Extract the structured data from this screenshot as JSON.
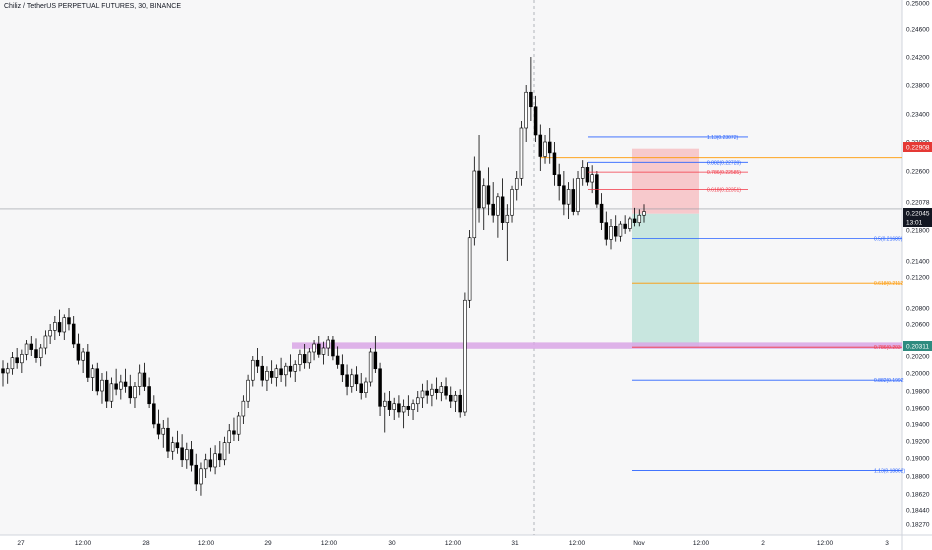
{
  "header": {
    "title": "Chiliz / TetherUS PERPETUAL FUTURES, 30, BINANCE"
  },
  "colors": {
    "background": "#f7f7f8",
    "axis_background": "#ffffff",
    "up_candle": "#ffffff",
    "down_candle": "#000000",
    "candle_outline": "#000000",
    "fib_blue": "#2962ff",
    "fib_orange": "#ff9800",
    "fib_red": "#f23645",
    "stop_zone": "#f7c9cc",
    "target_zone": "#c8e6df",
    "support_band": "#d9a6e6",
    "price_badge_red": "#e53935",
    "price_badge_black": "#131722",
    "price_badge_teal": "#2e8b7f"
  },
  "chart_data": {
    "type": "candlestick",
    "title": "Chiliz / TetherUS PERPETUAL FUTURES, 30, BINANCE",
    "x_tick_labels": [
      "27",
      "12:00",
      "28",
      "12:00",
      "29",
      "12:00",
      "30",
      "12:00",
      "31",
      "12:00",
      "Nov",
      "12:00",
      "2",
      "12:00",
      "3"
    ],
    "y_tick_labels": [
      "0.25000",
      "0.24600",
      "0.24200",
      "0.23800",
      "0.23400",
      "0.23000",
      "0.22600",
      "0.21800",
      "0.21400",
      "0.21200",
      "0.20800",
      "0.20600",
      "0.20200",
      "0.20000",
      "0.19800",
      "0.19600",
      "0.19400",
      "0.19200",
      "0.19000",
      "0.18800",
      "0.18620",
      "0.18440",
      "0.18270"
    ],
    "ylim": [
      0.1827,
      0.25
    ],
    "grid": false,
    "price_badges": [
      {
        "label": "0.22908",
        "value": 0.22908,
        "style": "red"
      },
      {
        "label": "0.22078",
        "value": 0.22078,
        "style": "gray"
      },
      {
        "label": "0.22045",
        "value": 0.22045,
        "style": "black"
      },
      {
        "label": "13:01",
        "value": 0.21963,
        "style": "black"
      },
      {
        "label": "0.20311",
        "value": 0.20311,
        "style": "teal"
      }
    ],
    "fib_levels": [
      {
        "label": "1.13(0.23072)",
        "value": 0.23072,
        "color": "blue"
      },
      {
        "label": "0.882(0.22720)",
        "value": 0.2272,
        "color": "blue"
      },
      {
        "label": "0.786(0.22585)",
        "value": 0.22585,
        "color": "red"
      },
      {
        "label": "0.618(0.22351)",
        "value": 0.22351,
        "color": "red"
      },
      {
        "label": "0.5(0.21689)",
        "value": 0.21689,
        "color": "blue"
      },
      {
        "label": "0.618(0.2112",
        "value": 0.2112,
        "color": "orange"
      },
      {
        "label": "0.786(0.203",
        "value": 0.2031,
        "color": "red"
      },
      {
        "label": "0.882(0.1992",
        "value": 0.1992,
        "color": "blue"
      },
      {
        "label": "1.13(0.18862)",
        "value": 0.18862,
        "color": "blue"
      }
    ],
    "entry_price": 0.2202,
    "stop_price": 0.22908,
    "target_price": 0.20311,
    "support_band": [
      0.2029,
      0.2037
    ],
    "current_price": 0.22045,
    "candles_ohlc": [
      [
        0.2005,
        0.2015,
        0.1985,
        0.2
      ],
      [
        0.2,
        0.2012,
        0.1988,
        0.2005
      ],
      [
        0.2005,
        0.2025,
        0.1998,
        0.2018
      ],
      [
        0.2018,
        0.203,
        0.2005,
        0.2012
      ],
      [
        0.2012,
        0.2028,
        0.2,
        0.2022
      ],
      [
        0.2022,
        0.204,
        0.2015,
        0.2035
      ],
      [
        0.2035,
        0.2045,
        0.202,
        0.2028
      ],
      [
        0.2028,
        0.2042,
        0.2012,
        0.2018
      ],
      [
        0.2018,
        0.2035,
        0.2008,
        0.203
      ],
      [
        0.203,
        0.2052,
        0.2022,
        0.2045
      ],
      [
        0.2045,
        0.206,
        0.2035,
        0.2052
      ],
      [
        0.2052,
        0.207,
        0.204,
        0.2062
      ],
      [
        0.2062,
        0.2078,
        0.2045,
        0.205
      ],
      [
        0.205,
        0.2072,
        0.204,
        0.2068
      ],
      [
        0.2068,
        0.208,
        0.2052,
        0.206
      ],
      [
        0.206,
        0.207,
        0.203,
        0.2035
      ],
      [
        0.2035,
        0.2048,
        0.201,
        0.2015
      ],
      [
        0.2015,
        0.203,
        0.2,
        0.2025
      ],
      [
        0.2025,
        0.2035,
        0.199,
        0.1995
      ],
      [
        0.1995,
        0.201,
        0.198,
        0.2005
      ],
      [
        0.2005,
        0.2012,
        0.1975,
        0.198
      ],
      [
        0.198,
        0.2,
        0.1965,
        0.1992
      ],
      [
        0.1992,
        0.2002,
        0.196,
        0.1968
      ],
      [
        0.1968,
        0.1995,
        0.196,
        0.1988
      ],
      [
        0.1988,
        0.2005,
        0.1975,
        0.1982
      ],
      [
        0.1982,
        0.1998,
        0.197,
        0.199
      ],
      [
        0.199,
        0.2005,
        0.1978,
        0.1985
      ],
      [
        0.1985,
        0.1998,
        0.1965,
        0.1972
      ],
      [
        0.1972,
        0.199,
        0.196,
        0.1985
      ],
      [
        0.1985,
        0.201,
        0.1975,
        0.2
      ],
      [
        0.2,
        0.2012,
        0.198,
        0.1985
      ],
      [
        0.1985,
        0.1995,
        0.196,
        0.1965
      ],
      [
        0.1965,
        0.1975,
        0.1935,
        0.194
      ],
      [
        0.194,
        0.1958,
        0.1922,
        0.1928
      ],
      [
        0.1928,
        0.1945,
        0.1912,
        0.1935
      ],
      [
        0.1935,
        0.1948,
        0.19,
        0.1908
      ],
      [
        0.1908,
        0.1925,
        0.1898,
        0.1918
      ],
      [
        0.1918,
        0.1932,
        0.1905,
        0.1912
      ],
      [
        0.1912,
        0.1928,
        0.189,
        0.1898
      ],
      [
        0.1898,
        0.1918,
        0.1888,
        0.191
      ],
      [
        0.191,
        0.192,
        0.1885,
        0.1892
      ],
      [
        0.1892,
        0.1905,
        0.1865,
        0.1872
      ],
      [
        0.1872,
        0.1895,
        0.186,
        0.1888
      ],
      [
        0.1888,
        0.1905,
        0.1878,
        0.1898
      ],
      [
        0.1898,
        0.1912,
        0.1885,
        0.189
      ],
      [
        0.189,
        0.1915,
        0.1882,
        0.1905
      ],
      [
        0.1905,
        0.192,
        0.189,
        0.1898
      ],
      [
        0.1898,
        0.1925,
        0.1892,
        0.1918
      ],
      [
        0.1918,
        0.194,
        0.1905,
        0.1932
      ],
      [
        0.1932,
        0.1948,
        0.192,
        0.1928
      ],
      [
        0.1928,
        0.1955,
        0.192,
        0.195
      ],
      [
        0.195,
        0.1975,
        0.194,
        0.1968
      ],
      [
        0.1968,
        0.1998,
        0.196,
        0.1992
      ],
      [
        0.1992,
        0.202,
        0.1985,
        0.2015
      ],
      [
        0.2015,
        0.203,
        0.2,
        0.2008
      ],
      [
        0.2008,
        0.202,
        0.1985,
        0.1992
      ],
      [
        0.1992,
        0.2008,
        0.198,
        0.2002
      ],
      [
        0.2002,
        0.2015,
        0.1988,
        0.1995
      ],
      [
        0.1995,
        0.201,
        0.1985,
        0.2005
      ],
      [
        0.2005,
        0.2018,
        0.199,
        0.1998
      ],
      [
        0.1998,
        0.2012,
        0.1985,
        0.2008
      ],
      [
        0.2008,
        0.2022,
        0.1995,
        0.2002
      ],
      [
        0.2002,
        0.2015,
        0.199,
        0.201
      ],
      [
        0.201,
        0.2028,
        0.2002,
        0.2022
      ],
      [
        0.2022,
        0.2035,
        0.2005,
        0.2012
      ],
      [
        0.2012,
        0.203,
        0.2005,
        0.2025
      ],
      [
        0.2025,
        0.204,
        0.2015,
        0.2035
      ],
      [
        0.2035,
        0.2045,
        0.2018,
        0.2022
      ],
      [
        0.2022,
        0.2038,
        0.201,
        0.203
      ],
      [
        0.203,
        0.2045,
        0.202,
        0.204
      ],
      [
        0.204,
        0.2045,
        0.2015,
        0.202
      ],
      [
        0.202,
        0.2032,
        0.2005,
        0.201
      ],
      [
        0.201,
        0.2022,
        0.199,
        0.1998
      ],
      [
        0.1998,
        0.201,
        0.1975,
        0.1985
      ],
      [
        0.1985,
        0.2005,
        0.1978,
        0.1998
      ],
      [
        0.1998,
        0.2008,
        0.198,
        0.1988
      ],
      [
        0.1988,
        0.2,
        0.197,
        0.1978
      ],
      [
        0.1978,
        0.1995,
        0.1972,
        0.199
      ],
      [
        0.199,
        0.203,
        0.1985,
        0.2025
      ],
      [
        0.2025,
        0.2045,
        0.2,
        0.2005
      ],
      [
        0.2005,
        0.2012,
        0.195,
        0.1962
      ],
      [
        0.1962,
        0.1978,
        0.193,
        0.1968
      ],
      [
        0.1968,
        0.198,
        0.195,
        0.1958
      ],
      [
        0.1958,
        0.1972,
        0.1945,
        0.1965
      ],
      [
        0.1965,
        0.1975,
        0.1948,
        0.1955
      ],
      [
        0.1955,
        0.197,
        0.1935,
        0.1962
      ],
      [
        0.1962,
        0.1975,
        0.195,
        0.1958
      ],
      [
        0.1958,
        0.197,
        0.1945,
        0.1965
      ],
      [
        0.1965,
        0.198,
        0.1955,
        0.1972
      ],
      [
        0.1972,
        0.1988,
        0.196,
        0.198
      ],
      [
        0.198,
        0.1992,
        0.1965,
        0.1975
      ],
      [
        0.1975,
        0.1988,
        0.1962,
        0.1982
      ],
      [
        0.1982,
        0.1995,
        0.197,
        0.1978
      ],
      [
        0.1978,
        0.199,
        0.1968,
        0.1985
      ],
      [
        0.1985,
        0.1995,
        0.197,
        0.1975
      ],
      [
        0.1975,
        0.1985,
        0.196,
        0.1968
      ],
      [
        0.1968,
        0.198,
        0.1955,
        0.1975
      ],
      [
        0.1975,
        0.1982,
        0.1948,
        0.1955
      ],
      [
        0.1955,
        0.21,
        0.195,
        0.209
      ],
      [
        0.209,
        0.218,
        0.208,
        0.217
      ],
      [
        0.217,
        0.228,
        0.216,
        0.226
      ],
      [
        0.226,
        0.231,
        0.219,
        0.221
      ],
      [
        0.221,
        0.225,
        0.218,
        0.224
      ],
      [
        0.224,
        0.2265,
        0.22,
        0.2215
      ],
      [
        0.2215,
        0.2245,
        0.219,
        0.22
      ],
      [
        0.22,
        0.223,
        0.217,
        0.2225
      ],
      [
        0.2225,
        0.225,
        0.218,
        0.219
      ],
      [
        0.219,
        0.2215,
        0.214,
        0.22
      ],
      [
        0.22,
        0.224,
        0.219,
        0.2235
      ],
      [
        0.2235,
        0.226,
        0.222,
        0.225
      ],
      [
        0.225,
        0.233,
        0.224,
        0.232
      ],
      [
        0.232,
        0.238,
        0.23,
        0.237
      ],
      [
        0.237,
        0.242,
        0.233,
        0.235
      ],
      [
        0.235,
        0.2365,
        0.23,
        0.231
      ],
      [
        0.231,
        0.2325,
        0.226,
        0.228
      ],
      [
        0.228,
        0.231,
        0.227,
        0.23
      ],
      [
        0.23,
        0.232,
        0.227,
        0.2285
      ],
      [
        0.2285,
        0.23,
        0.224,
        0.2255
      ],
      [
        0.2255,
        0.227,
        0.222,
        0.224
      ],
      [
        0.224,
        0.226,
        0.22,
        0.2215
      ],
      [
        0.2215,
        0.2245,
        0.2195,
        0.2235
      ],
      [
        0.2235,
        0.225,
        0.22,
        0.2205
      ],
      [
        0.2205,
        0.226,
        0.22,
        0.225
      ],
      [
        0.225,
        0.2275,
        0.224,
        0.2265
      ],
      [
        0.2265,
        0.2272,
        0.224,
        0.2245
      ],
      [
        0.2245,
        0.2268,
        0.223,
        0.2255
      ],
      [
        0.2255,
        0.226,
        0.221,
        0.2215
      ],
      [
        0.2215,
        0.223,
        0.218,
        0.219
      ],
      [
        0.219,
        0.2205,
        0.216,
        0.2168
      ],
      [
        0.2168,
        0.2195,
        0.2155,
        0.2185
      ],
      [
        0.2185,
        0.22,
        0.2165,
        0.2172
      ],
      [
        0.2172,
        0.2192,
        0.2165,
        0.2188
      ],
      [
        0.2188,
        0.22,
        0.2175,
        0.2182
      ],
      [
        0.2182,
        0.2198,
        0.2178,
        0.2195
      ],
      [
        0.2195,
        0.221,
        0.2185,
        0.219
      ],
      [
        0.219,
        0.2208,
        0.2185,
        0.22
      ],
      [
        0.22,
        0.2215,
        0.219,
        0.2205
      ]
    ]
  }
}
